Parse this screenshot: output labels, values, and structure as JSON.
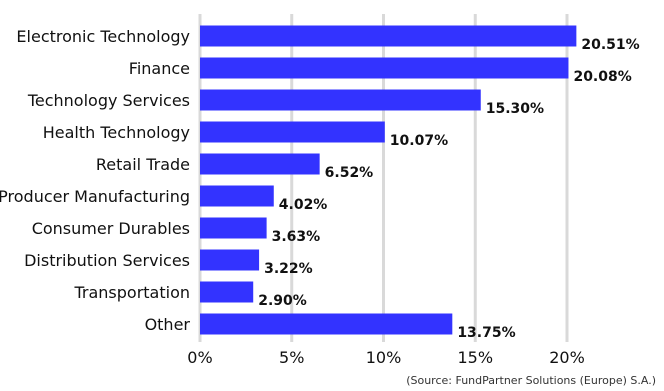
{
  "chart_data": {
    "type": "bar",
    "orientation": "horizontal",
    "categories": [
      "Electronic Technology",
      "Finance",
      "Technology Services",
      "Health Technology",
      "Retail Trade",
      "Producer Manufacturing",
      "Consumer Durables",
      "Distribution Services",
      "Transportation",
      "Other"
    ],
    "values": [
      20.51,
      20.08,
      15.3,
      10.07,
      6.52,
      4.02,
      3.63,
      3.22,
      2.9,
      13.75
    ],
    "value_labels": [
      "20.51%",
      "20.08%",
      "15.30%",
      "10.07%",
      "6.52%",
      "4.02%",
      "3.63%",
      "3.22%",
      "2.90%",
      "13.75%"
    ],
    "xticks": [
      "0%",
      "5%",
      "10%",
      "15%",
      "20%"
    ],
    "xlim": [
      0,
      25
    ],
    "grid": true,
    "bar_color": "#3333ff",
    "grid_color": "#d9d9d9",
    "source": "(Source: FundPartner Solutions (Europe) S.A.)"
  }
}
